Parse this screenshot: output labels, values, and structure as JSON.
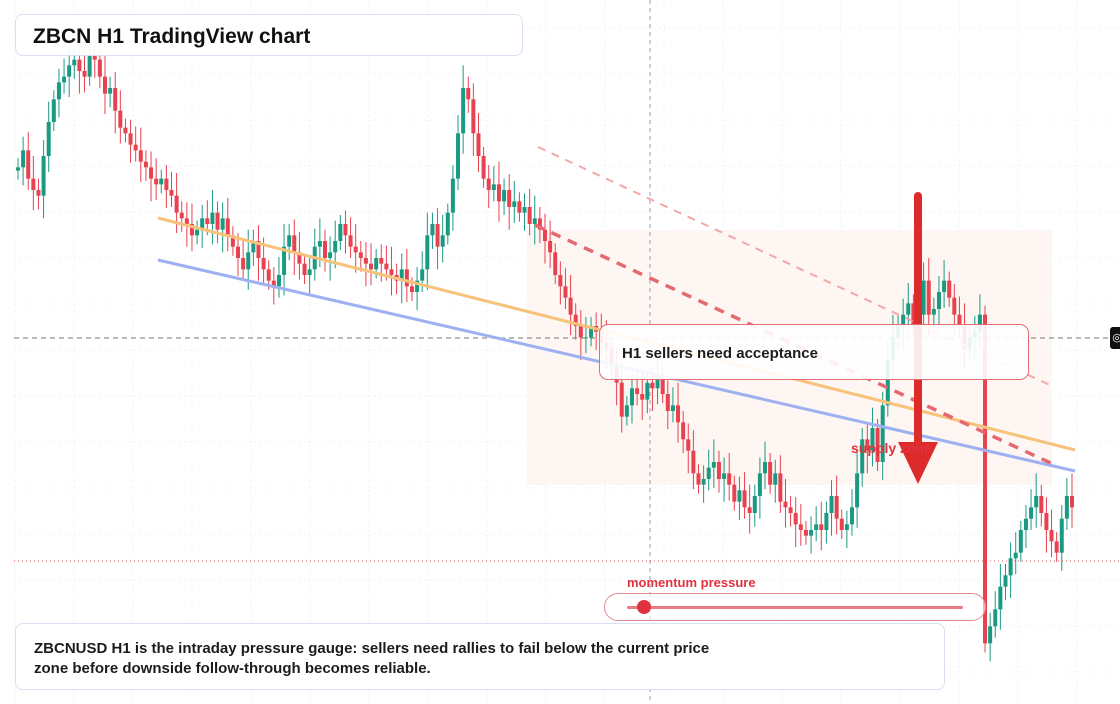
{
  "title": "ZBCN H1 TradingView chart",
  "callout": "H1 sellers need acceptance",
  "supply_label": "supply zone",
  "momentum": {
    "label": "momentum pressure",
    "level": 0.05
  },
  "footer_text": "ZBCNUSD H1 is the intraday pressure gauge: sellers need rallies to fail below the current price zone before downside follow-through becomes reliable.",
  "colors": {
    "up": "#1a9a83",
    "down": "#e8414f",
    "support": "#9db1f1",
    "trend_orange": "#f7c27a",
    "resistance_dash": "#e46a70",
    "arrow": "#dd2b2b",
    "zone": "#fdf3ee"
  },
  "chart_data": {
    "type": "candlestick",
    "symbol": "ZBCNUSD",
    "timeframe": "H1",
    "close_series": [
      0.0057,
      0.00585,
      0.0056,
      0.0055,
      0.00545,
      0.0058,
      0.0061,
      0.0063,
      0.00645,
      0.0065,
      0.0066,
      0.00665,
      0.00655,
      0.0065,
      0.0067,
      0.00665,
      0.0065,
      0.00635,
      0.0064,
      0.0062,
      0.00605,
      0.006,
      0.0059,
      0.00585,
      0.00575,
      0.0057,
      0.0056,
      0.00555,
      0.0056,
      0.0055,
      0.00545,
      0.0053,
      0.00525,
      0.0052,
      0.0051,
      0.00515,
      0.00525,
      0.0052,
      0.0053,
      0.00515,
      0.00525,
      0.0051,
      0.005,
      0.0049,
      0.0048,
      0.00495,
      0.00505,
      0.0049,
      0.0048,
      0.0047,
      0.00465,
      0.00475,
      0.005,
      0.0051,
      0.00495,
      0.00485,
      0.00475,
      0.0048,
      0.005,
      0.00505,
      0.0049,
      0.00495,
      0.00505,
      0.0052,
      0.0051,
      0.005,
      0.00495,
      0.0049,
      0.00485,
      0.0048,
      0.0049,
      0.00485,
      0.0048,
      0.00475,
      0.0047,
      0.0048,
      0.00465,
      0.0046,
      0.0047,
      0.0048,
      0.0051,
      0.0052,
      0.005,
      0.0051,
      0.0053,
      0.0056,
      0.006,
      0.0064,
      0.0063,
      0.006,
      0.0058,
      0.0056,
      0.0055,
      0.00555,
      0.0054,
      0.0055,
      0.00535,
      0.0054,
      0.0053,
      0.00535,
      0.0052,
      0.00525,
      0.00515,
      0.00505,
      0.00495,
      0.00475,
      0.00465,
      0.00455,
      0.0044,
      0.0043,
      0.0042,
      0.0042,
      0.0043,
      0.00425,
      0.00415,
      0.0041,
      0.00395,
      0.0038,
      0.0035,
      0.0036,
      0.00375,
      0.0037,
      0.00365,
      0.0038,
      0.00375,
      0.00385,
      0.0037,
      0.00355,
      0.0036,
      0.00345,
      0.0033,
      0.0032,
      0.003,
      0.0029,
      0.00295,
      0.00305,
      0.0031,
      0.00295,
      0.003,
      0.0029,
      0.00275,
      0.00285,
      0.0027,
      0.00265,
      0.0028,
      0.003,
      0.0031,
      0.0029,
      0.003,
      0.00275,
      0.0027,
      0.00265,
      0.00255,
      0.0025,
      0.00245,
      0.0025,
      0.00255,
      0.0025,
      0.00265,
      0.0028,
      0.0026,
      0.0025,
      0.00255,
      0.0027,
      0.003,
      0.0033,
      0.0032,
      0.0034,
      0.0031,
      0.0036,
      0.004,
      0.0042,
      0.0043,
      0.0044,
      0.0045,
      0.0043,
      0.0044,
      0.0047,
      0.0044,
      0.00445,
      0.0046,
      0.0047,
      0.00455,
      0.0044,
      0.0043,
      0.0041,
      0.0042,
      0.00425,
      0.0044,
      0.0015,
      0.00165,
      0.0018,
      0.002,
      0.0021,
      0.00225,
      0.0023,
      0.0025,
      0.0026,
      0.0027,
      0.0028,
      0.00265,
      0.0025,
      0.0024,
      0.0023,
      0.0026,
      0.0028,
      0.0027
    ],
    "note": "No axis ticks or price labels are printed in the screenshot; values are illustrative of the visible candle path."
  }
}
